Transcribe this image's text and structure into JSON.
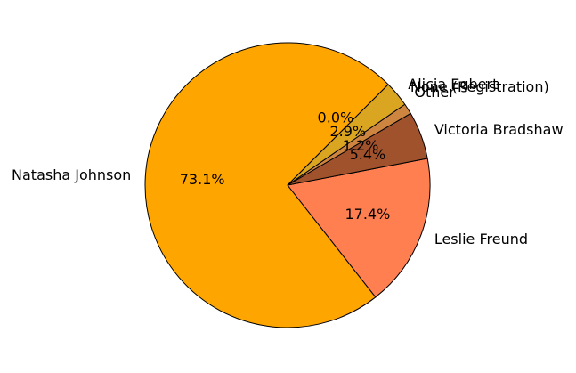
{
  "chart_data": {
    "type": "pie",
    "title": "",
    "start_angle_deg": 45,
    "direction": "counterclockwise",
    "slices": [
      {
        "label": "Other",
        "value": 0.0,
        "pct_label": "0.0%",
        "color": "#ffd700"
      },
      {
        "label": "Natasha Johnson",
        "value": 73.1,
        "pct_label": "73.1%",
        "color": "#ffa500"
      },
      {
        "label": "Leslie Freund",
        "value": 17.4,
        "pct_label": "17.4%",
        "color": "#ff7f50"
      },
      {
        "label": "Victoria Bradshaw",
        "value": 5.4,
        "pct_label": "5.4%",
        "color": "#a0522d"
      },
      {
        "label": "None (Registration)",
        "value": 1.2,
        "pct_label": "1.2%",
        "color": "#cd853f"
      },
      {
        "label": "Alicja Egbert",
        "value": 2.9,
        "pct_label": "2.9%",
        "color": "#daa520"
      }
    ]
  }
}
